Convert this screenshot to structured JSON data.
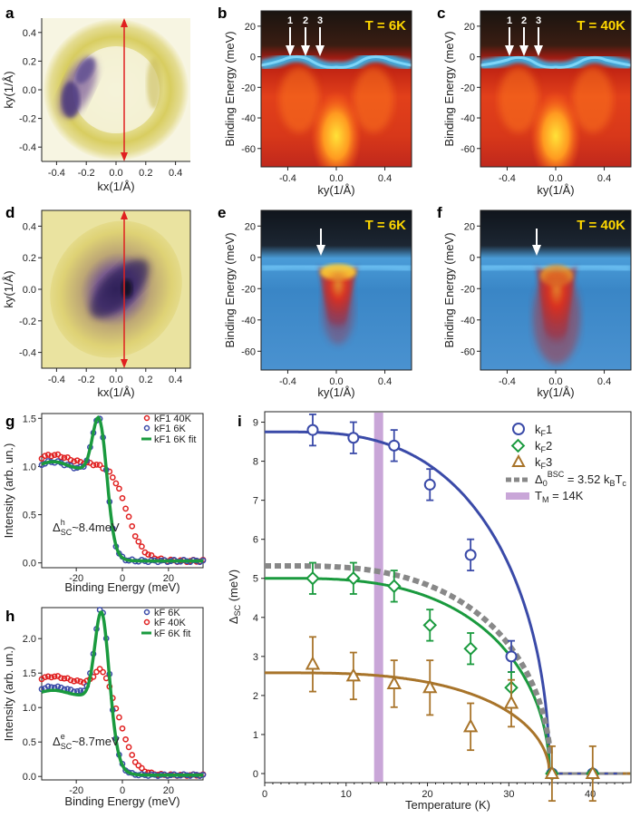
{
  "panel_labels": {
    "a": "a",
    "b": "b",
    "c": "c",
    "d": "d",
    "e": "e",
    "f": "f",
    "g": "g",
    "h": "h",
    "i": "i"
  },
  "colors": {
    "blue": "#3a4aa8",
    "green": "#1a9a3e",
    "brown": "#a8742a",
    "gray": "#888888",
    "purple": "#c9a6d8",
    "red": "#e02020"
  },
  "map_axes": {
    "xlabel": "kx(1/Å)",
    "ylabel": "ky(1/Å)",
    "xticks": [
      "-0.4",
      "-0.2",
      "0.0",
      "0.2",
      "0.4"
    ],
    "yticks": [
      "0.4",
      "0.2",
      "0.0",
      "-0.2",
      "-0.4"
    ]
  },
  "arpes_axes": {
    "xlabel": "ky(1/Å)",
    "ylabel": "Binding Energy (meV)",
    "xticks": [
      "-0.4",
      "0.0",
      "0.4"
    ],
    "yticks": [
      "20",
      "0",
      "-20",
      "-40",
      "-60"
    ]
  },
  "panel_b": {
    "temp": "T = 6K",
    "arrows": [
      "1",
      "2",
      "3"
    ]
  },
  "panel_c": {
    "temp": "T = 40K",
    "arrows": [
      "1",
      "2",
      "3"
    ]
  },
  "panel_e": {
    "temp": "T = 6K"
  },
  "panel_f": {
    "temp": "T = 40K"
  },
  "edc_axes": {
    "xlabel": "Binding Energy (meV)",
    "ylabel": "Intensity (arb. un.)",
    "xticks": [
      "-20",
      "0",
      "20"
    ]
  },
  "panel_g": {
    "yticks": [
      "1.5",
      "1.0",
      "0.5",
      "0.0"
    ],
    "legend": [
      "kF1 40K",
      "kF1 6K",
      "kF1 6K fit"
    ],
    "gap_label": "Δ",
    "gap_sup": "h",
    "gap_sub": "SC",
    "gap_value": "~8.4meV"
  },
  "panel_h": {
    "yticks": [
      "2.0",
      "1.5",
      "1.0",
      "0.5",
      "0.0"
    ],
    "legend": [
      "kF 6K",
      "kF 40K",
      "kF 6K fit"
    ],
    "gap_label": "Δ",
    "gap_sup": "e",
    "gap_sub": "SC",
    "gap_value": "~8.7meV"
  },
  "panel_i": {
    "xlabel": "Temperature (K)",
    "ylabel_main": "Δ",
    "ylabel_sub": "SC",
    "ylabel_unit": " (meV)",
    "xticks": [
      "0",
      "10",
      "20",
      "30",
      "40"
    ],
    "yticks": [
      "9",
      "8",
      "7",
      "6",
      "5",
      "4",
      "3",
      "2",
      "1",
      "0"
    ],
    "legend": {
      "k1": "k",
      "k1s": "F",
      "k1n": "1",
      "k2": "k",
      "k2s": "F",
      "k2n": "2",
      "k3": "k",
      "k3s": "F",
      "k3n": "3",
      "bcs": "Δ",
      "bcs_sub": "0",
      "bcs_sup": "BSC",
      "bcs_rest": " = 3.52 k",
      "bcs_b": "B",
      "bcs_t": "T",
      "bcs_c": "c",
      "tm": "T",
      "tm_sub": "M",
      "tm_rest": " = 14K"
    }
  },
  "chart_data": [
    {
      "type": "scatter",
      "title": "i",
      "xlabel": "Temperature (K)",
      "ylabel": "ΔSC (meV)",
      "xlim": [
        0,
        45
      ],
      "ylim": [
        0,
        9.5
      ],
      "series": [
        {
          "name": "kF1",
          "x": [
            5.9,
            10.9,
            15.9,
            20.3,
            25.3,
            30.3,
            35.3,
            40.3
          ],
          "y": [
            8.8,
            8.6,
            8.4,
            7.4,
            5.6,
            3.0,
            0.0,
            0.0
          ],
          "err": [
            0.4,
            0.4,
            0.4,
            0.4,
            0.4,
            0.4,
            0.0,
            0.0
          ]
        },
        {
          "name": "kF2",
          "x": [
            5.9,
            10.9,
            15.9,
            20.3,
            25.3,
            30.3,
            35.3,
            40.3
          ],
          "y": [
            5.0,
            5.0,
            4.8,
            3.8,
            3.2,
            2.2,
            0.0,
            0.0
          ],
          "err": [
            0.4,
            0.4,
            0.4,
            0.4,
            0.4,
            0.4,
            0.0,
            0.0
          ]
        },
        {
          "name": "kF3",
          "x": [
            5.9,
            10.9,
            15.9,
            20.3,
            25.3,
            30.3,
            35.3,
            40.3
          ],
          "y": [
            2.8,
            2.5,
            2.3,
            2.2,
            1.2,
            1.8,
            0.0,
            0.0
          ],
          "err": [
            0.7,
            0.6,
            0.6,
            0.7,
            0.6,
            0.6,
            0.7,
            0.7
          ]
        }
      ],
      "fits": [
        {
          "name": "kF1 fit",
          "delta0": 8.75,
          "tc": 35
        },
        {
          "name": "kF2 fit",
          "delta0": 5.0,
          "tc": 35
        },
        {
          "name": "kF3 fit",
          "delta0": 2.58,
          "tc": 35
        },
        {
          "name": "Δ0BSC = 3.52 kBTc",
          "delta0": 5.32,
          "tc": 35.2
        }
      ],
      "vband": {
        "name": "TM = 14K",
        "x": 14
      }
    },
    {
      "type": "line",
      "title": "g",
      "xlabel": "Binding Energy (meV)",
      "ylabel": "Intensity (arb. un.)",
      "xlim": [
        -35,
        35
      ],
      "ylim": [
        -0.05,
        1.55
      ],
      "series": [
        {
          "name": "kF1 40K",
          "peak_height": 0.0,
          "bg": 1.02,
          "mid": 2.0,
          "width": 3.5
        },
        {
          "name": "kF1 6K",
          "peak_height": 0.62,
          "peak_pos": -10,
          "bg": 0.95,
          "mid": -6.0,
          "width": 1.8
        },
        {
          "name": "kF1 6K fit",
          "peak_height": 0.62,
          "peak_pos": -10,
          "bg": 0.95,
          "mid": -6.0,
          "width": 1.8
        }
      ]
    },
    {
      "type": "line",
      "title": "h",
      "xlabel": "Binding Energy (meV)",
      "ylabel": "Intensity (arb. un.)",
      "xlim": [
        -35,
        35
      ],
      "ylim": [
        -0.05,
        2.45
      ],
      "series": [
        {
          "name": "kF 6K",
          "peak_height": 1.3,
          "peak_pos": -9,
          "bg": 1.2,
          "mid": -4.0,
          "width": 2.0
        },
        {
          "name": "kF 40K",
          "peak_height": 0.25,
          "peak_pos": -9,
          "bg": 1.35,
          "mid": 0.0,
          "width": 3.2
        },
        {
          "name": "kF 6K fit",
          "peak_height": 1.3,
          "peak_pos": -9,
          "bg": 1.15,
          "mid": -4.0,
          "width": 2.0
        }
      ]
    }
  ]
}
